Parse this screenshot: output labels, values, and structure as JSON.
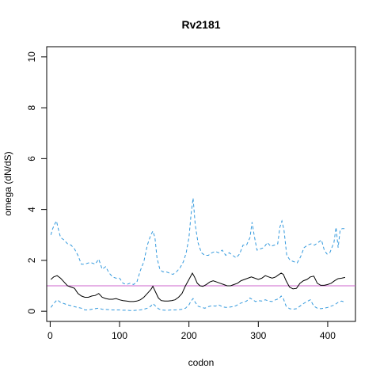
{
  "chart_data": {
    "type": "line",
    "title": "Rv2181",
    "xlabel": "codon",
    "ylabel": "omega (dN/dS)",
    "xlim": [
      -5,
      440
    ],
    "ylim": [
      -0.4,
      10.4
    ],
    "xticks": [
      0,
      100,
      200,
      300,
      400
    ],
    "yticks": [
      0,
      2,
      4,
      6,
      8,
      10
    ],
    "reference_line": {
      "y": 1,
      "color": "#cc66cc"
    },
    "series": [
      {
        "role": "estimate",
        "color": "#000000",
        "dash": "solid",
        "x": [
          1,
          5,
          10,
          15,
          20,
          25,
          30,
          35,
          40,
          45,
          50,
          55,
          60,
          65,
          70,
          75,
          80,
          85,
          90,
          95,
          100,
          105,
          110,
          115,
          120,
          125,
          130,
          135,
          140,
          145,
          148,
          152,
          156,
          160,
          165,
          170,
          175,
          180,
          185,
          190,
          195,
          200,
          205,
          208,
          212,
          216,
          220,
          225,
          230,
          235,
          240,
          245,
          250,
          255,
          260,
          265,
          270,
          275,
          280,
          285,
          290,
          295,
          300,
          305,
          310,
          315,
          320,
          325,
          330,
          333,
          336,
          340,
          345,
          350,
          355,
          360,
          365,
          370,
          375,
          380,
          385,
          390,
          395,
          400,
          405,
          410,
          415,
          420,
          425
        ],
        "y": [
          1.25,
          1.35,
          1.4,
          1.3,
          1.15,
          1.0,
          0.95,
          0.9,
          0.7,
          0.6,
          0.55,
          0.55,
          0.6,
          0.62,
          0.7,
          0.55,
          0.5,
          0.47,
          0.47,
          0.5,
          0.45,
          0.42,
          0.4,
          0.38,
          0.38,
          0.4,
          0.45,
          0.55,
          0.7,
          0.85,
          0.98,
          0.75,
          0.52,
          0.42,
          0.4,
          0.4,
          0.42,
          0.45,
          0.55,
          0.7,
          1.0,
          1.25,
          1.5,
          1.35,
          1.1,
          1.0,
          0.98,
          1.05,
          1.15,
          1.2,
          1.15,
          1.1,
          1.05,
          1.0,
          1.0,
          1.05,
          1.1,
          1.2,
          1.25,
          1.3,
          1.35,
          1.3,
          1.25,
          1.3,
          1.4,
          1.35,
          1.3,
          1.35,
          1.45,
          1.5,
          1.45,
          1.2,
          0.95,
          0.88,
          0.9,
          1.1,
          1.2,
          1.25,
          1.35,
          1.38,
          1.1,
          1.02,
          1.02,
          1.05,
          1.1,
          1.2,
          1.28,
          1.3,
          1.33
        ]
      },
      {
        "role": "upper_bound",
        "color": "#3399dd",
        "dash": "dashed",
        "x": [
          1,
          3,
          6,
          9,
          12,
          15,
          20,
          25,
          30,
          35,
          40,
          45,
          50,
          55,
          60,
          65,
          70,
          75,
          80,
          85,
          90,
          95,
          100,
          105,
          110,
          115,
          120,
          125,
          130,
          135,
          140,
          145,
          148,
          151,
          154,
          158,
          162,
          167,
          172,
          177,
          182,
          187,
          192,
          196,
          200,
          203,
          206,
          209,
          213,
          218,
          223,
          228,
          233,
          238,
          243,
          248,
          253,
          258,
          263,
          268,
          273,
          278,
          283,
          288,
          291,
          294,
          298,
          303,
          308,
          313,
          318,
          323,
          328,
          331,
          334,
          337,
          341,
          346,
          351,
          356,
          361,
          366,
          371,
          376,
          381,
          386,
          391,
          395,
          399,
          403,
          406,
          409,
          412,
          415,
          418,
          421,
          425
        ],
        "y": [
          3.0,
          3.2,
          3.4,
          3.55,
          3.2,
          2.9,
          2.8,
          2.65,
          2.6,
          2.45,
          2.2,
          1.85,
          1.85,
          1.9,
          1.9,
          1.85,
          2.05,
          1.65,
          1.75,
          1.5,
          1.35,
          1.3,
          1.3,
          1.1,
          1.05,
          1.1,
          1.05,
          1.15,
          1.6,
          1.95,
          2.6,
          3.0,
          3.15,
          2.9,
          2.1,
          1.65,
          1.55,
          1.55,
          1.5,
          1.45,
          1.55,
          1.7,
          1.95,
          2.3,
          2.9,
          3.8,
          4.45,
          3.4,
          2.7,
          2.3,
          2.2,
          2.2,
          2.3,
          2.35,
          2.3,
          2.4,
          2.2,
          2.3,
          2.2,
          2.1,
          2.25,
          2.6,
          2.6,
          2.9,
          3.5,
          3.0,
          2.4,
          2.45,
          2.5,
          2.7,
          2.55,
          2.6,
          2.65,
          3.3,
          3.55,
          3.2,
          2.2,
          2.0,
          1.95,
          1.9,
          2.15,
          2.5,
          2.6,
          2.65,
          2.6,
          2.7,
          2.8,
          2.4,
          2.25,
          2.3,
          2.5,
          2.7,
          3.3,
          2.5,
          3.2,
          3.25,
          3.25
        ]
      },
      {
        "role": "lower_bound",
        "color": "#3399dd",
        "dash": "dashed",
        "x": [
          1,
          5,
          10,
          15,
          20,
          25,
          30,
          35,
          40,
          45,
          50,
          55,
          60,
          65,
          70,
          75,
          80,
          85,
          90,
          95,
          100,
          105,
          110,
          115,
          120,
          125,
          130,
          135,
          140,
          145,
          148,
          152,
          156,
          160,
          165,
          170,
          175,
          180,
          185,
          190,
          195,
          200,
          203,
          206,
          209,
          213,
          218,
          223,
          228,
          233,
          238,
          243,
          248,
          253,
          258,
          263,
          268,
          273,
          278,
          283,
          288,
          292,
          296,
          300,
          305,
          310,
          315,
          320,
          325,
          330,
          333,
          336,
          340,
          345,
          350,
          355,
          360,
          365,
          370,
          375,
          380,
          385,
          390,
          395,
          400,
          405,
          410,
          415,
          420,
          425
        ],
        "y": [
          0.15,
          0.3,
          0.45,
          0.35,
          0.3,
          0.25,
          0.22,
          0.18,
          0.15,
          0.12,
          0.05,
          0.05,
          0.08,
          0.1,
          0.12,
          0.08,
          0.07,
          0.06,
          0.05,
          0.05,
          0.05,
          0.04,
          0.04,
          0.03,
          0.03,
          0.04,
          0.05,
          0.08,
          0.12,
          0.2,
          0.3,
          0.2,
          0.1,
          0.05,
          0.04,
          0.04,
          0.05,
          0.05,
          0.06,
          0.08,
          0.12,
          0.25,
          0.4,
          0.5,
          0.35,
          0.2,
          0.15,
          0.12,
          0.18,
          0.22,
          0.2,
          0.25,
          0.18,
          0.15,
          0.16,
          0.18,
          0.22,
          0.3,
          0.35,
          0.4,
          0.52,
          0.45,
          0.38,
          0.42,
          0.4,
          0.45,
          0.4,
          0.38,
          0.45,
          0.5,
          0.6,
          0.5,
          0.2,
          0.1,
          0.08,
          0.1,
          0.2,
          0.3,
          0.38,
          0.45,
          0.2,
          0.12,
          0.1,
          0.12,
          0.15,
          0.2,
          0.25,
          0.35,
          0.4,
          0.35
        ]
      }
    ]
  }
}
